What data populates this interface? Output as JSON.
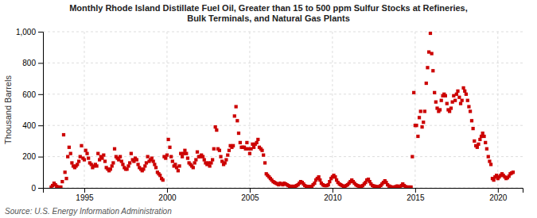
{
  "chart_data": {
    "type": "scatter",
    "title": "Monthly Rhode Island Distillate Fuel Oil, Greater than 15 to 500 ppm Sulfur Stocks at Refineries,\nBulk Terminals, and Natural Gas Plants",
    "ylabel": "Thousand Barrels",
    "annotation": "Source: U.S. Energy Information Administration",
    "color": "#cc0000",
    "marker": "square",
    "grid": true,
    "xlim": [
      1992.5,
      2021.5
    ],
    "ylim": [
      0,
      1000
    ],
    "xticks": [
      1995,
      2000,
      2005,
      2010,
      2015,
      2020
    ],
    "yticks": [
      0,
      200,
      400,
      600,
      800,
      {
        "value": 1000,
        "label": "1,000"
      }
    ],
    "x": [
      1993.0,
      1993.08,
      1993.17,
      1993.25,
      1993.33,
      1993.42,
      1993.5,
      1993.58,
      1993.67,
      1993.75,
      1993.83,
      1993.92,
      1994.0,
      1994.08,
      1994.17,
      1994.25,
      1994.33,
      1994.42,
      1994.5,
      1994.58,
      1994.67,
      1994.75,
      1994.83,
      1994.92,
      1995.0,
      1995.08,
      1995.17,
      1995.25,
      1995.33,
      1995.42,
      1995.5,
      1995.58,
      1995.67,
      1995.75,
      1995.83,
      1995.92,
      1996.0,
      1996.08,
      1996.17,
      1996.25,
      1996.33,
      1996.42,
      1996.5,
      1996.58,
      1996.67,
      1996.75,
      1996.83,
      1996.92,
      1997.0,
      1997.08,
      1997.17,
      1997.25,
      1997.33,
      1997.42,
      1997.5,
      1997.58,
      1997.67,
      1997.75,
      1997.83,
      1997.92,
      1998.0,
      1998.08,
      1998.17,
      1998.25,
      1998.33,
      1998.42,
      1998.5,
      1998.58,
      1998.67,
      1998.75,
      1998.83,
      1998.92,
      1999.0,
      1999.08,
      1999.17,
      1999.25,
      1999.33,
      1999.42,
      1999.5,
      1999.58,
      1999.67,
      1999.75,
      1999.83,
      1999.92,
      2000.0,
      2000.08,
      2000.17,
      2000.25,
      2000.33,
      2000.42,
      2000.5,
      2000.58,
      2000.67,
      2000.75,
      2000.83,
      2000.92,
      2001.0,
      2001.08,
      2001.17,
      2001.25,
      2001.33,
      2001.42,
      2001.5,
      2001.58,
      2001.67,
      2001.75,
      2001.83,
      2001.92,
      2002.0,
      2002.08,
      2002.17,
      2002.25,
      2002.33,
      2002.42,
      2002.5,
      2002.58,
      2002.67,
      2002.75,
      2002.83,
      2002.92,
      2003.0,
      2003.08,
      2003.17,
      2003.25,
      2003.33,
      2003.42,
      2003.5,
      2003.58,
      2003.67,
      2003.75,
      2003.83,
      2003.92,
      2004.0,
      2004.08,
      2004.17,
      2004.25,
      2004.33,
      2004.42,
      2004.5,
      2004.58,
      2004.67,
      2004.75,
      2004.83,
      2004.92,
      2005.0,
      2005.08,
      2005.17,
      2005.25,
      2005.33,
      2005.42,
      2005.5,
      2005.58,
      2005.67,
      2005.75,
      2005.83,
      2005.92,
      2006.0,
      2006.08,
      2006.17,
      2006.25,
      2006.33,
      2006.42,
      2006.5,
      2006.58,
      2006.67,
      2006.75,
      2006.83,
      2006.92,
      2007.0,
      2007.08,
      2007.17,
      2007.25,
      2007.33,
      2007.42,
      2007.5,
      2007.58,
      2007.67,
      2007.75,
      2007.83,
      2007.92,
      2008.0,
      2008.08,
      2008.17,
      2008.25,
      2008.33,
      2008.42,
      2008.5,
      2008.58,
      2008.67,
      2008.75,
      2008.83,
      2008.92,
      2009.0,
      2009.08,
      2009.17,
      2009.25,
      2009.33,
      2009.42,
      2009.5,
      2009.58,
      2009.67,
      2009.75,
      2009.83,
      2009.92,
      2010.0,
      2010.08,
      2010.17,
      2010.25,
      2010.33,
      2010.42,
      2010.5,
      2010.58,
      2010.67,
      2010.75,
      2010.83,
      2010.92,
      2011.0,
      2011.08,
      2011.17,
      2011.25,
      2011.33,
      2011.42,
      2011.5,
      2011.58,
      2011.67,
      2011.75,
      2011.83,
      2011.92,
      2012.0,
      2012.08,
      2012.17,
      2012.25,
      2012.33,
      2012.42,
      2012.5,
      2012.58,
      2012.67,
      2012.75,
      2012.83,
      2012.92,
      2013.0,
      2013.08,
      2013.17,
      2013.25,
      2013.33,
      2013.42,
      2013.5,
      2013.58,
      2013.67,
      2013.75,
      2013.83,
      2013.92,
      2014.0,
      2014.08,
      2014.17,
      2014.25,
      2014.33,
      2014.42,
      2014.5,
      2014.58,
      2014.67,
      2014.75,
      2014.83,
      2014.92,
      2015.0,
      2015.08,
      2015.17,
      2015.25,
      2015.33,
      2015.42,
      2015.5,
      2015.58,
      2015.67,
      2015.75,
      2015.83,
      2015.92,
      2016.0,
      2016.08,
      2016.17,
      2016.25,
      2016.33,
      2016.42,
      2016.5,
      2016.58,
      2016.67,
      2016.75,
      2016.83,
      2016.92,
      2017.0,
      2017.08,
      2017.17,
      2017.25,
      2017.33,
      2017.42,
      2017.5,
      2017.58,
      2017.67,
      2017.75,
      2017.83,
      2017.92,
      2018.0,
      2018.08,
      2018.17,
      2018.25,
      2018.33,
      2018.42,
      2018.5,
      2018.58,
      2018.67,
      2018.75,
      2018.83,
      2018.92,
      2019.0,
      2019.08,
      2019.17,
      2019.25,
      2019.33,
      2019.42,
      2019.5,
      2019.58,
      2019.67,
      2019.75,
      2019.83,
      2019.92,
      2020.0,
      2020.08,
      2020.17,
      2020.25,
      2020.33,
      2020.42,
      2020.5,
      2020.58,
      2020.67,
      2020.75,
      2020.83,
      2020.92
    ],
    "values": [
      5,
      15,
      30,
      20,
      10,
      5,
      5,
      5,
      40,
      340,
      100,
      60,
      200,
      260,
      220,
      160,
      140,
      130,
      140,
      150,
      170,
      200,
      270,
      190,
      180,
      240,
      220,
      190,
      160,
      150,
      130,
      140,
      150,
      140,
      220,
      180,
      200,
      190,
      210,
      170,
      130,
      120,
      110,
      120,
      140,
      160,
      250,
      200,
      190,
      180,
      200,
      170,
      150,
      130,
      120,
      120,
      140,
      160,
      220,
      180,
      170,
      190,
      180,
      150,
      130,
      120,
      110,
      120,
      140,
      160,
      200,
      170,
      180,
      190,
      170,
      150,
      130,
      100,
      90,
      80,
      60,
      50,
      200,
      190,
      210,
      310,
      260,
      200,
      170,
      140,
      150,
      130,
      110,
      140,
      220,
      200,
      220,
      240,
      220,
      190,
      160,
      150,
      140,
      130,
      160,
      180,
      230,
      200,
      200,
      210,
      200,
      180,
      160,
      150,
      160,
      140,
      160,
      180,
      250,
      390,
      370,
      250,
      240,
      200,
      170,
      150,
      160,
      180,
      210,
      240,
      270,
      260,
      270,
      460,
      520,
      430,
      350,
      290,
      260,
      260,
      260,
      250,
      290,
      250,
      220,
      250,
      280,
      260,
      280,
      290,
      310,
      260,
      250,
      240,
      210,
      160,
      90,
      80,
      70,
      60,
      50,
      40,
      35,
      30,
      25,
      20,
      30,
      25,
      20,
      30,
      25,
      20,
      15,
      10,
      10,
      10,
      10,
      10,
      15,
      20,
      30,
      40,
      35,
      25,
      15,
      10,
      8,
      8,
      8,
      10,
      20,
      30,
      50,
      60,
      70,
      50,
      30,
      20,
      15,
      15,
      15,
      20,
      40,
      60,
      70,
      80,
      70,
      50,
      35,
      25,
      20,
      15,
      10,
      10,
      15,
      20,
      30,
      40,
      50,
      40,
      30,
      20,
      15,
      12,
      10,
      10,
      15,
      25,
      35,
      50,
      55,
      40,
      25,
      15,
      12,
      10,
      8,
      5,
      8,
      15,
      25,
      35,
      45,
      35,
      20,
      12,
      8,
      5,
      5,
      5,
      8,
      12,
      5,
      8,
      15,
      25,
      15,
      8,
      5,
      5,
      5,
      5,
      200,
      610,
      400,
      400,
      330,
      450,
      490,
      390,
      420,
      490,
      670,
      770,
      870,
      990,
      860,
      750,
      610,
      550,
      510,
      490,
      500,
      560,
      590,
      600,
      590,
      540,
      500,
      490,
      510,
      550,
      590,
      560,
      600,
      620,
      580,
      540,
      560,
      640,
      620,
      600,
      560,
      520,
      490,
      430,
      380,
      300,
      270,
      260,
      280,
      310,
      330,
      350,
      330,
      290,
      250,
      200,
      170,
      150,
      60,
      50,
      70,
      80,
      60,
      70,
      80,
      90,
      80,
      70,
      60,
      65,
      75,
      90,
      95,
      100
    ]
  }
}
